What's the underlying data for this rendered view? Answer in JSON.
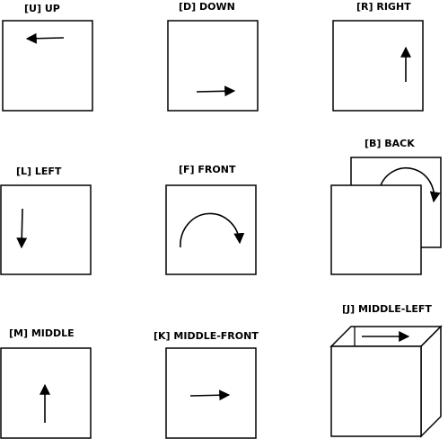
{
  "panels": [
    {
      "key": "U",
      "label": "[U] UP"
    },
    {
      "key": "D",
      "label": "[D] DOWN"
    },
    {
      "key": "R",
      "label": "[R] RIGHT"
    },
    {
      "key": "L",
      "label": "[L] LEFT"
    },
    {
      "key": "F",
      "label": "[F] FRONT"
    },
    {
      "key": "B",
      "label": "[B] BACK"
    },
    {
      "key": "M",
      "label": "[M] MIDDLE"
    },
    {
      "key": "K",
      "label": "[K] MIDDLE-FRONT"
    },
    {
      "key": "J",
      "label": "[J] MIDDLE-LEFT"
    }
  ],
  "colors": {
    "stroke": "#000000",
    "background": "#ffffff"
  }
}
